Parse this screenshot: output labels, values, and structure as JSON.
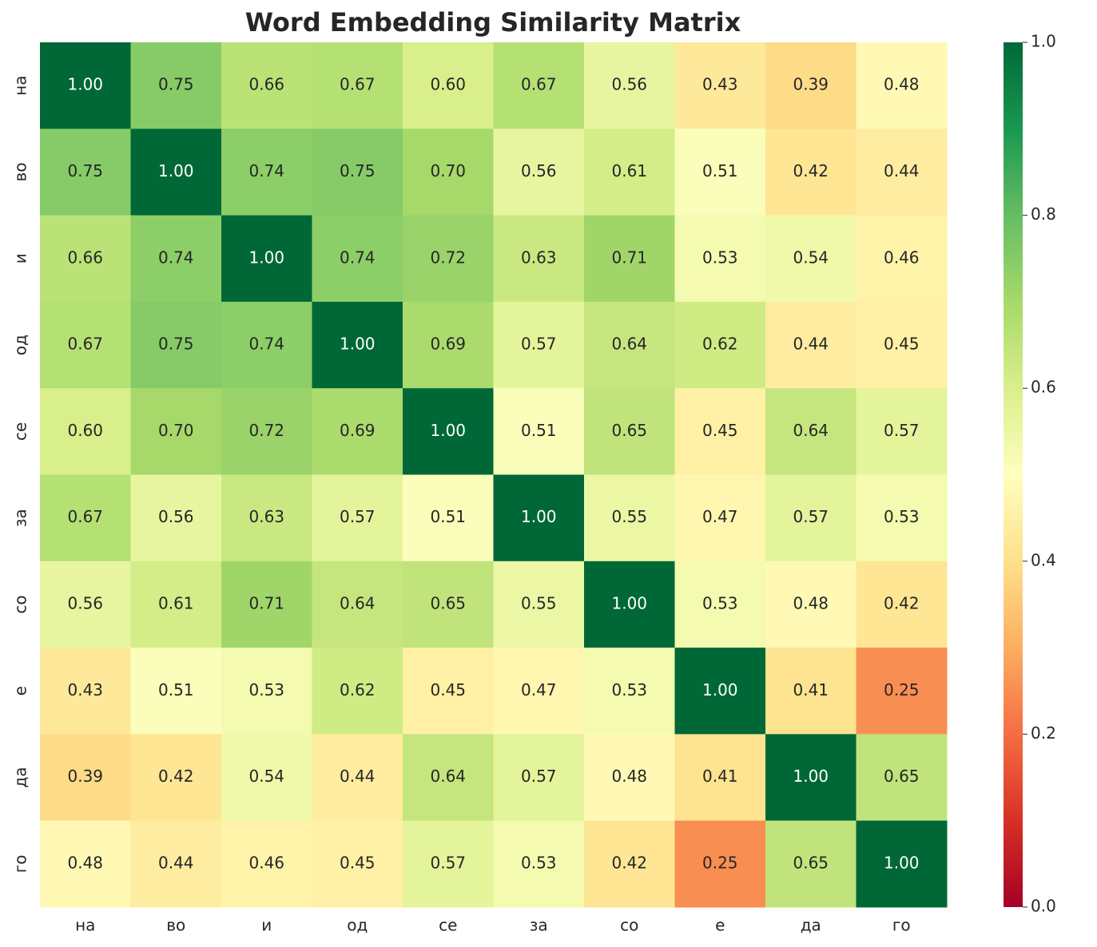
{
  "chart_data": {
    "type": "heatmap",
    "title": "Word Embedding Similarity Matrix",
    "x_categories": [
      "на",
      "во",
      "и",
      "од",
      "се",
      "за",
      "со",
      "е",
      "да",
      "го"
    ],
    "y_categories": [
      "на",
      "во",
      "и",
      "од",
      "се",
      "за",
      "со",
      "е",
      "да",
      "го"
    ],
    "values": [
      [
        1.0,
        0.75,
        0.66,
        0.67,
        0.6,
        0.67,
        0.56,
        0.43,
        0.39,
        0.48
      ],
      [
        0.75,
        1.0,
        0.74,
        0.75,
        0.7,
        0.56,
        0.61,
        0.51,
        0.42,
        0.44
      ],
      [
        0.66,
        0.74,
        1.0,
        0.74,
        0.72,
        0.63,
        0.71,
        0.53,
        0.54,
        0.46
      ],
      [
        0.67,
        0.75,
        0.74,
        1.0,
        0.69,
        0.57,
        0.64,
        0.62,
        0.44,
        0.45
      ],
      [
        0.6,
        0.7,
        0.72,
        0.69,
        1.0,
        0.51,
        0.65,
        0.45,
        0.64,
        0.57
      ],
      [
        0.67,
        0.56,
        0.63,
        0.57,
        0.51,
        1.0,
        0.55,
        0.47,
        0.57,
        0.53
      ],
      [
        0.56,
        0.61,
        0.71,
        0.64,
        0.65,
        0.55,
        1.0,
        0.53,
        0.48,
        0.42
      ],
      [
        0.43,
        0.51,
        0.53,
        0.62,
        0.45,
        0.47,
        0.53,
        1.0,
        0.41,
        0.25
      ],
      [
        0.39,
        0.42,
        0.54,
        0.44,
        0.64,
        0.57,
        0.48,
        0.41,
        1.0,
        0.65
      ],
      [
        0.48,
        0.44,
        0.46,
        0.45,
        0.57,
        0.53,
        0.42,
        0.25,
        0.65,
        1.0
      ]
    ],
    "value_labels": [
      [
        "1.00",
        "0.75",
        "0.66",
        "0.67",
        "0.60",
        "0.67",
        "0.56",
        "0.43",
        "0.39",
        "0.48"
      ],
      [
        "0.75",
        "1.00",
        "0.74",
        "0.75",
        "0.70",
        "0.56",
        "0.61",
        "0.51",
        "0.42",
        "0.44"
      ],
      [
        "0.66",
        "0.74",
        "1.00",
        "0.74",
        "0.72",
        "0.63",
        "0.71",
        "0.53",
        "0.54",
        "0.46"
      ],
      [
        "0.67",
        "0.75",
        "0.74",
        "1.00",
        "0.69",
        "0.57",
        "0.64",
        "0.62",
        "0.44",
        "0.45"
      ],
      [
        "0.60",
        "0.70",
        "0.72",
        "0.69",
        "1.00",
        "0.51",
        "0.65",
        "0.45",
        "0.64",
        "0.57"
      ],
      [
        "0.67",
        "0.56",
        "0.63",
        "0.57",
        "0.51",
        "1.00",
        "0.55",
        "0.47",
        "0.57",
        "0.53"
      ],
      [
        "0.56",
        "0.61",
        "0.71",
        "0.64",
        "0.65",
        "0.55",
        "1.00",
        "0.53",
        "0.48",
        "0.42"
      ],
      [
        "0.43",
        "0.51",
        "0.53",
        "0.62",
        "0.45",
        "0.47",
        "0.53",
        "1.00",
        "0.41",
        "0.25"
      ],
      [
        "0.39",
        "0.42",
        "0.54",
        "0.44",
        "0.64",
        "0.57",
        "0.48",
        "0.41",
        "1.00",
        "0.65"
      ],
      [
        "0.48",
        "0.44",
        "0.46",
        "0.45",
        "0.57",
        "0.53",
        "0.42",
        "0.25",
        "0.65",
        "1.00"
      ]
    ],
    "colormap": "RdYlGn",
    "clim": [
      0,
      1
    ],
    "cticks": [
      {
        "value": 0,
        "label": "0.0"
      },
      0.2,
      0.4,
      0.6,
      0.8,
      {
        "value": 1,
        "label": "1.0"
      }
    ]
  }
}
